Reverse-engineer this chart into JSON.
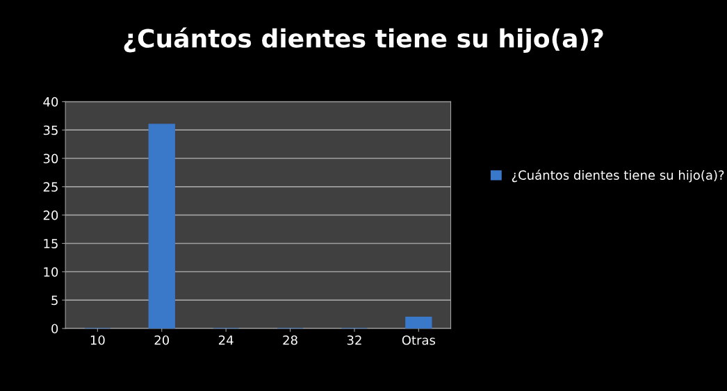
{
  "chart_data": {
    "type": "bar",
    "title": "¿Cuántos dientes tiene su hijo(a)?",
    "categories": [
      "10",
      "20",
      "24",
      "28",
      "32",
      "Otras"
    ],
    "series": [
      {
        "name": "¿Cuántos dientes tiene su hijo(a)?",
        "color": "#3a78c9",
        "values": [
          0,
          36,
          0,
          0,
          0,
          2
        ]
      }
    ],
    "ylim": [
      0,
      40
    ],
    "yticks": [
      0,
      5,
      10,
      15,
      20,
      25,
      30,
      35,
      40
    ],
    "grid": "y",
    "legend": "right"
  }
}
